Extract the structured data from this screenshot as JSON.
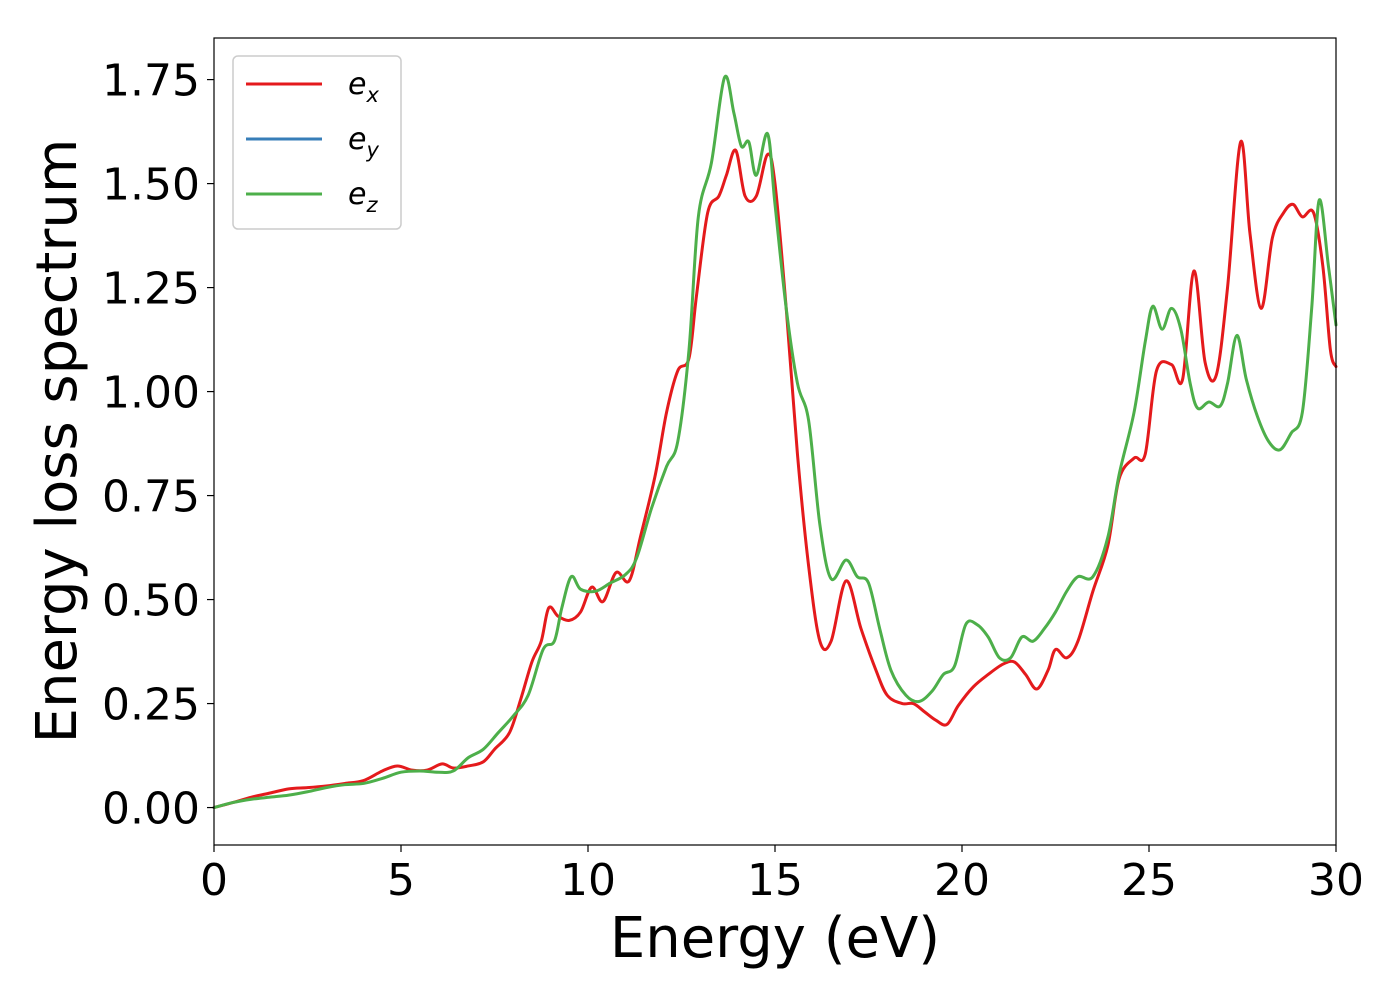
{
  "chart_data": {
    "type": "line",
    "xlabel": "Energy (eV)",
    "ylabel": "Energy loss spectrum",
    "xlim": [
      0,
      30
    ],
    "ylim": [
      -0.09,
      1.85
    ],
    "xticks": [
      0,
      5,
      10,
      15,
      20,
      25,
      30
    ],
    "xtick_labels": [
      "0",
      "5",
      "10",
      "15",
      "20",
      "25",
      "30"
    ],
    "yticks": [
      0.0,
      0.25,
      0.5,
      0.75,
      1.0,
      1.25,
      1.5,
      1.75
    ],
    "ytick_labels": [
      "0.00",
      "0.25",
      "0.50",
      "0.75",
      "1.00",
      "1.25",
      "1.50",
      "1.75"
    ],
    "grid": false,
    "legend_position": "top-left",
    "series": [
      {
        "name": "e_x",
        "base": "e",
        "sub": "x",
        "color": "#e41a1c",
        "points": [
          [
            0,
            0
          ],
          [
            0.5,
            0.012
          ],
          [
            1,
            0.025
          ],
          [
            1.5,
            0.035
          ],
          [
            2,
            0.045
          ],
          [
            2.5,
            0.048
          ],
          [
            3,
            0.052
          ],
          [
            3.5,
            0.058
          ],
          [
            4,
            0.065
          ],
          [
            4.5,
            0.088
          ],
          [
            4.9,
            0.1
          ],
          [
            5.3,
            0.09
          ],
          [
            5.7,
            0.09
          ],
          [
            6.1,
            0.105
          ],
          [
            6.4,
            0.095
          ],
          [
            6.8,
            0.1
          ],
          [
            7.2,
            0.11
          ],
          [
            7.5,
            0.14
          ],
          [
            7.9,
            0.18
          ],
          [
            8.2,
            0.26
          ],
          [
            8.5,
            0.35
          ],
          [
            8.75,
            0.4
          ],
          [
            8.95,
            0.48
          ],
          [
            9.2,
            0.46
          ],
          [
            9.5,
            0.45
          ],
          [
            9.8,
            0.47
          ],
          [
            10.1,
            0.53
          ],
          [
            10.4,
            0.495
          ],
          [
            10.75,
            0.565
          ],
          [
            11.1,
            0.545
          ],
          [
            11.4,
            0.65
          ],
          [
            11.8,
            0.8
          ],
          [
            12.1,
            0.95
          ],
          [
            12.4,
            1.05
          ],
          [
            12.7,
            1.08
          ],
          [
            12.9,
            1.23
          ],
          [
            13.2,
            1.43
          ],
          [
            13.5,
            1.47
          ],
          [
            13.7,
            1.52
          ],
          [
            13.95,
            1.58
          ],
          [
            14.2,
            1.47
          ],
          [
            14.5,
            1.47
          ],
          [
            14.8,
            1.57
          ],
          [
            15.0,
            1.5
          ],
          [
            15.3,
            1.2
          ],
          [
            15.6,
            0.85
          ],
          [
            15.9,
            0.58
          ],
          [
            16.2,
            0.4
          ],
          [
            16.5,
            0.4
          ],
          [
            16.9,
            0.545
          ],
          [
            17.3,
            0.43
          ],
          [
            17.7,
            0.33
          ],
          [
            18.0,
            0.27
          ],
          [
            18.4,
            0.25
          ],
          [
            18.7,
            0.25
          ],
          [
            19.0,
            0.23
          ],
          [
            19.3,
            0.21
          ],
          [
            19.6,
            0.2
          ],
          [
            19.9,
            0.245
          ],
          [
            20.3,
            0.29
          ],
          [
            20.7,
            0.32
          ],
          [
            21.1,
            0.345
          ],
          [
            21.4,
            0.35
          ],
          [
            21.7,
            0.32
          ],
          [
            22.0,
            0.285
          ],
          [
            22.3,
            0.33
          ],
          [
            22.5,
            0.38
          ],
          [
            22.8,
            0.36
          ],
          [
            23.1,
            0.4
          ],
          [
            23.5,
            0.52
          ],
          [
            23.9,
            0.63
          ],
          [
            24.2,
            0.79
          ],
          [
            24.6,
            0.84
          ],
          [
            24.9,
            0.85
          ],
          [
            25.2,
            1.05
          ],
          [
            25.6,
            1.065
          ],
          [
            25.9,
            1.03
          ],
          [
            26.2,
            1.29
          ],
          [
            26.5,
            1.07
          ],
          [
            26.8,
            1.04
          ],
          [
            27.1,
            1.25
          ],
          [
            27.45,
            1.6
          ],
          [
            27.7,
            1.38
          ],
          [
            28.0,
            1.2
          ],
          [
            28.3,
            1.37
          ],
          [
            28.6,
            1.43
          ],
          [
            28.85,
            1.45
          ],
          [
            29.1,
            1.42
          ],
          [
            29.4,
            1.43
          ],
          [
            29.65,
            1.3
          ],
          [
            29.85,
            1.1
          ],
          [
            30,
            1.06
          ]
        ]
      },
      {
        "name": "e_y",
        "base": "e",
        "sub": "y",
        "color": "#377eb8",
        "points": []
      },
      {
        "name": "e_z",
        "base": "e",
        "sub": "z",
        "color": "#4daf4a",
        "points": [
          [
            0,
            0
          ],
          [
            0.5,
            0.012
          ],
          [
            1,
            0.02
          ],
          [
            1.5,
            0.025
          ],
          [
            2,
            0.03
          ],
          [
            2.5,
            0.038
          ],
          [
            3,
            0.048
          ],
          [
            3.5,
            0.055
          ],
          [
            4,
            0.058
          ],
          [
            4.5,
            0.07
          ],
          [
            5,
            0.085
          ],
          [
            5.5,
            0.088
          ],
          [
            6,
            0.085
          ],
          [
            6.4,
            0.088
          ],
          [
            6.8,
            0.12
          ],
          [
            7.2,
            0.14
          ],
          [
            7.6,
            0.18
          ],
          [
            8.0,
            0.22
          ],
          [
            8.4,
            0.27
          ],
          [
            8.8,
            0.38
          ],
          [
            9.1,
            0.4
          ],
          [
            9.3,
            0.48
          ],
          [
            9.55,
            0.555
          ],
          [
            9.8,
            0.525
          ],
          [
            10.2,
            0.52
          ],
          [
            10.6,
            0.54
          ],
          [
            11.0,
            0.56
          ],
          [
            11.3,
            0.6
          ],
          [
            11.7,
            0.72
          ],
          [
            12.1,
            0.82
          ],
          [
            12.4,
            0.88
          ],
          [
            12.7,
            1.1
          ],
          [
            12.95,
            1.42
          ],
          [
            13.3,
            1.55
          ],
          [
            13.65,
            1.755
          ],
          [
            13.9,
            1.67
          ],
          [
            14.1,
            1.59
          ],
          [
            14.3,
            1.6
          ],
          [
            14.5,
            1.52
          ],
          [
            14.8,
            1.62
          ],
          [
            15.0,
            1.45
          ],
          [
            15.3,
            1.2
          ],
          [
            15.6,
            1.02
          ],
          [
            15.9,
            0.93
          ],
          [
            16.2,
            0.68
          ],
          [
            16.5,
            0.55
          ],
          [
            16.9,
            0.595
          ],
          [
            17.2,
            0.555
          ],
          [
            17.5,
            0.54
          ],
          [
            17.8,
            0.43
          ],
          [
            18.1,
            0.33
          ],
          [
            18.5,
            0.27
          ],
          [
            18.85,
            0.255
          ],
          [
            19.2,
            0.28
          ],
          [
            19.5,
            0.32
          ],
          [
            19.8,
            0.34
          ],
          [
            20.1,
            0.44
          ],
          [
            20.4,
            0.44
          ],
          [
            20.7,
            0.41
          ],
          [
            21.0,
            0.36
          ],
          [
            21.3,
            0.36
          ],
          [
            21.6,
            0.41
          ],
          [
            21.9,
            0.4
          ],
          [
            22.2,
            0.43
          ],
          [
            22.5,
            0.47
          ],
          [
            22.8,
            0.52
          ],
          [
            23.1,
            0.555
          ],
          [
            23.5,
            0.555
          ],
          [
            23.9,
            0.65
          ],
          [
            24.2,
            0.8
          ],
          [
            24.6,
            0.95
          ],
          [
            24.9,
            1.12
          ],
          [
            25.1,
            1.205
          ],
          [
            25.35,
            1.15
          ],
          [
            25.6,
            1.2
          ],
          [
            25.85,
            1.15
          ],
          [
            26.1,
            1.02
          ],
          [
            26.3,
            0.96
          ],
          [
            26.6,
            0.975
          ],
          [
            26.9,
            0.965
          ],
          [
            27.1,
            1.02
          ],
          [
            27.35,
            1.135
          ],
          [
            27.6,
            1.03
          ],
          [
            27.9,
            0.94
          ],
          [
            28.2,
            0.88
          ],
          [
            28.5,
            0.86
          ],
          [
            28.8,
            0.9
          ],
          [
            29.1,
            0.95
          ],
          [
            29.35,
            1.2
          ],
          [
            29.55,
            1.46
          ],
          [
            29.8,
            1.3
          ],
          [
            30,
            1.16
          ]
        ]
      }
    ]
  }
}
